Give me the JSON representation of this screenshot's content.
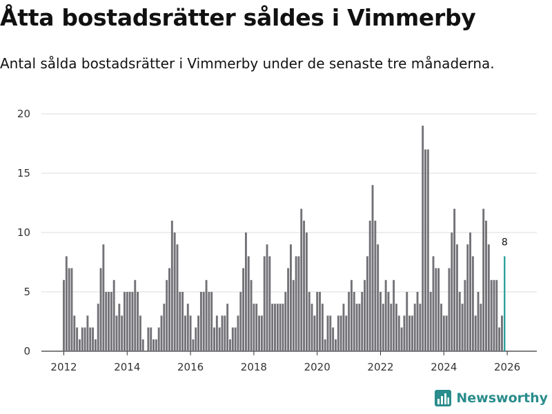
{
  "title": "Åtta bostadsrätter såldes i Vimmerby",
  "subtitle": "Antal sålda bostadsrätter i Vimmerby under de senaste tre månaderna.",
  "brand": "Newsworthy",
  "colors": {
    "bar": "#727176",
    "highlight": "#1a9a94",
    "grid": "#dddddd",
    "brand": "#2a8c8c"
  },
  "chart_data": {
    "type": "bar",
    "title": "Åtta bostadsrätter såldes i Vimmerby",
    "xlabel": "",
    "ylabel": "",
    "ylim": [
      0,
      20
    ],
    "yticks": [
      0,
      5,
      10,
      15,
      20
    ],
    "xticks": [
      "2012",
      "2014",
      "2016",
      "2018",
      "2020",
      "2022",
      "2024",
      "2026"
    ],
    "x_start": "2012-01",
    "frequency": "monthly",
    "values": [
      6,
      8,
      7,
      7,
      3,
      2,
      1,
      2,
      2,
      3,
      2,
      2,
      1,
      4,
      7,
      9,
      5,
      5,
      5,
      6,
      3,
      4,
      3,
      5,
      5,
      5,
      5,
      6,
      5,
      3,
      1,
      0,
      2,
      2,
      1,
      1,
      2,
      3,
      4,
      6,
      7,
      11,
      10,
      9,
      5,
      5,
      3,
      4,
      3,
      1,
      2,
      3,
      5,
      5,
      6,
      5,
      5,
      2,
      3,
      2,
      3,
      3,
      4,
      1,
      2,
      2,
      3,
      5,
      7,
      10,
      8,
      6,
      4,
      4,
      3,
      3,
      8,
      9,
      8,
      4,
      4,
      4,
      4,
      4,
      5,
      7,
      9,
      6,
      8,
      8,
      12,
      11,
      10,
      5,
      4,
      3,
      5,
      5,
      4,
      1,
      3,
      3,
      2,
      1,
      3,
      3,
      4,
      3,
      5,
      6,
      5,
      4,
      4,
      5,
      6,
      8,
      11,
      14,
      11,
      9,
      5,
      4,
      6,
      5,
      4,
      6,
      4,
      3,
      2,
      3,
      5,
      3,
      3,
      4,
      5,
      4,
      19,
      17,
      17,
      5,
      8,
      7,
      7,
      4,
      3,
      3,
      7,
      10,
      12,
      9,
      5,
      4,
      6,
      9,
      10,
      8,
      3,
      5,
      4,
      12,
      11,
      9,
      6,
      6,
      6,
      2,
      3,
      8
    ],
    "highlight_last": true,
    "annotation": "8"
  }
}
